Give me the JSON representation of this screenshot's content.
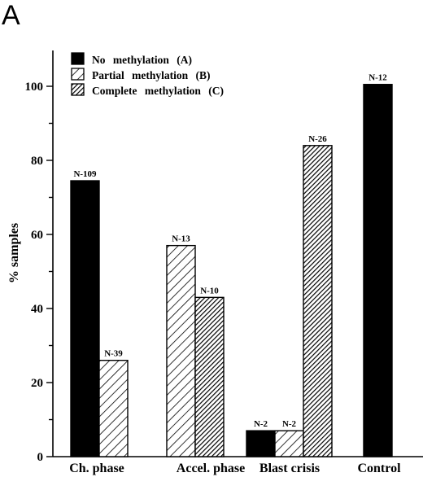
{
  "panel_label": "A",
  "colors": {
    "ink": "#000000",
    "paper": "#ffffff"
  },
  "chart_data": {
    "type": "bar",
    "title": "",
    "xlabel": "",
    "ylabel": "% samples",
    "ylim": [
      0,
      110
    ],
    "yticks": [
      0,
      20,
      40,
      60,
      80,
      100
    ],
    "grid": false,
    "legend_position": "top-left",
    "categories": [
      "Ch. phase",
      "Accel. phase",
      "Blast crisis",
      "Control"
    ],
    "series": [
      {
        "name": "No methylation (A)",
        "pattern": "solid",
        "values": [
          74.5,
          null,
          7,
          100.5
        ],
        "labels": [
          "N-109",
          null,
          "N-2",
          "N-12"
        ]
      },
      {
        "name": "Partial methylation (B)",
        "pattern": "hatch",
        "values": [
          26,
          57,
          7,
          null
        ],
        "labels": [
          "N-39",
          "N-13",
          "N-2",
          null
        ]
      },
      {
        "name": "Complete methylation (C)",
        "pattern": "dense-hatch",
        "values": [
          null,
          43,
          84,
          null
        ],
        "labels": [
          null,
          "N-10",
          "N-26",
          null
        ]
      }
    ]
  }
}
